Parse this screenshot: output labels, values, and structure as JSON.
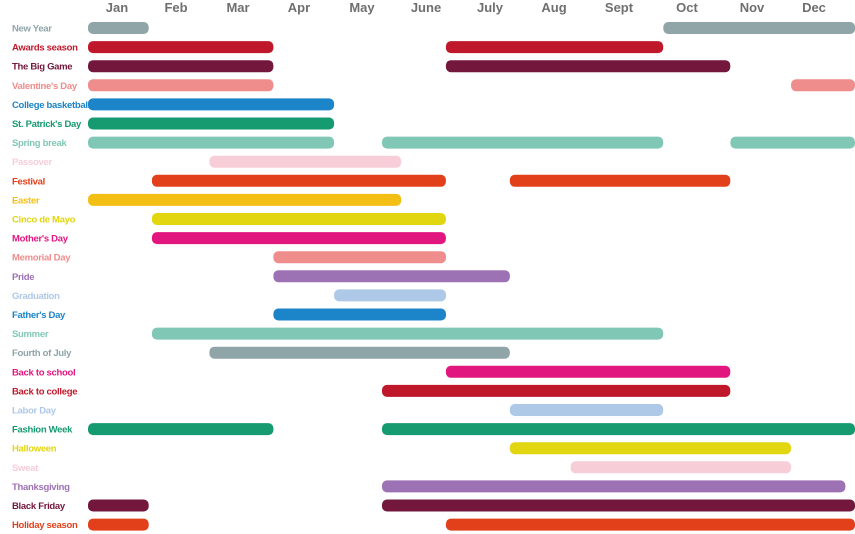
{
  "chart_data": {
    "type": "gantt",
    "months": [
      "Jan",
      "Feb",
      "Mar",
      "Apr",
      "May",
      "June",
      "July",
      "Aug",
      "Sept",
      "Oct",
      "Nov",
      "Dec"
    ],
    "xlim": [
      1,
      13
    ],
    "rows": [
      {
        "label": "New Year",
        "color": "#8fa5a8",
        "segments": [
          [
            1,
            1.95
          ],
          [
            10.0,
            13
          ]
        ]
      },
      {
        "label": "Awards season",
        "color": "#c0182b",
        "segments": [
          [
            1,
            3.9
          ],
          [
            6.6,
            10.0
          ]
        ]
      },
      {
        "label": "The Big Game",
        "color": "#73173c",
        "segments": [
          [
            1,
            3.9
          ],
          [
            6.6,
            11.05
          ]
        ]
      },
      {
        "label": "Valentine's Day",
        "color": "#ef8c8c",
        "segments": [
          [
            1,
            3.9
          ],
          [
            12.0,
            13
          ]
        ]
      },
      {
        "label": "College basketball",
        "color": "#1c84c8",
        "segments": [
          [
            1,
            4.85
          ]
        ]
      },
      {
        "label": "St. Patrick's Day",
        "color": "#169a70",
        "segments": [
          [
            1,
            4.85
          ]
        ]
      },
      {
        "label": "Spring break",
        "color": "#80c8b5",
        "segments": [
          [
            1,
            4.85
          ],
          [
            5.6,
            10.0
          ],
          [
            11.05,
            13
          ]
        ]
      },
      {
        "label": "Passover",
        "color": "#f7cdd8",
        "segments": [
          [
            2.9,
            5.9
          ]
        ]
      },
      {
        "label": "Festival",
        "color": "#e2401b",
        "segments": [
          [
            2.0,
            6.6
          ],
          [
            7.6,
            11.05
          ]
        ]
      },
      {
        "label": "Easter",
        "color": "#f3bf14",
        "segments": [
          [
            1,
            5.9
          ]
        ]
      },
      {
        "label": "Cinco de Mayo",
        "color": "#e1d60f",
        "segments": [
          [
            2.0,
            6.6
          ]
        ]
      },
      {
        "label": "Mother's Day",
        "color": "#e2167f",
        "segments": [
          [
            2.0,
            6.6
          ]
        ]
      },
      {
        "label": "Memorial Day",
        "color": "#ef8c8c",
        "segments": [
          [
            3.9,
            6.6
          ]
        ]
      },
      {
        "label": "Pride",
        "color": "#9d72b5",
        "segments": [
          [
            3.9,
            7.6
          ]
        ]
      },
      {
        "label": "Graduation",
        "color": "#aec8e8",
        "segments": [
          [
            4.85,
            6.6
          ]
        ]
      },
      {
        "label": "Father's Day",
        "color": "#1c84c8",
        "segments": [
          [
            3.9,
            6.6
          ]
        ]
      },
      {
        "label": "Summer",
        "color": "#80c8b5",
        "segments": [
          [
            2.0,
            10.0
          ]
        ]
      },
      {
        "label": "Fourth of July",
        "color": "#8fa5a8",
        "segments": [
          [
            2.9,
            7.6
          ]
        ]
      },
      {
        "label": "Back to school",
        "color": "#e2167f",
        "segments": [
          [
            6.6,
            11.05
          ]
        ]
      },
      {
        "label": "Back to college",
        "color": "#c0182b",
        "segments": [
          [
            5.6,
            11.05
          ]
        ]
      },
      {
        "label": "Labor Day",
        "color": "#aec8e8",
        "segments": [
          [
            7.6,
            10.0
          ]
        ]
      },
      {
        "label": "Fashion Week",
        "color": "#169a70",
        "segments": [
          [
            1,
            3.9
          ],
          [
            5.6,
            13
          ]
        ]
      },
      {
        "label": "Halloween",
        "color": "#e1d60f",
        "segments": [
          [
            7.6,
            12.0
          ]
        ]
      },
      {
        "label": "Sweat",
        "color": "#f7cdd8",
        "segments": [
          [
            8.55,
            12.0
          ]
        ]
      },
      {
        "label": "Thanksgiving",
        "color": "#9d72b5",
        "segments": [
          [
            5.6,
            12.85
          ]
        ]
      },
      {
        "label": "Black Friday",
        "color": "#73173c",
        "segments": [
          [
            1,
            1.95
          ],
          [
            5.6,
            13
          ]
        ]
      },
      {
        "label": "Holiday season",
        "color": "#e2401b",
        "segments": [
          [
            1,
            1.95
          ],
          [
            6.6,
            13
          ]
        ]
      }
    ]
  }
}
